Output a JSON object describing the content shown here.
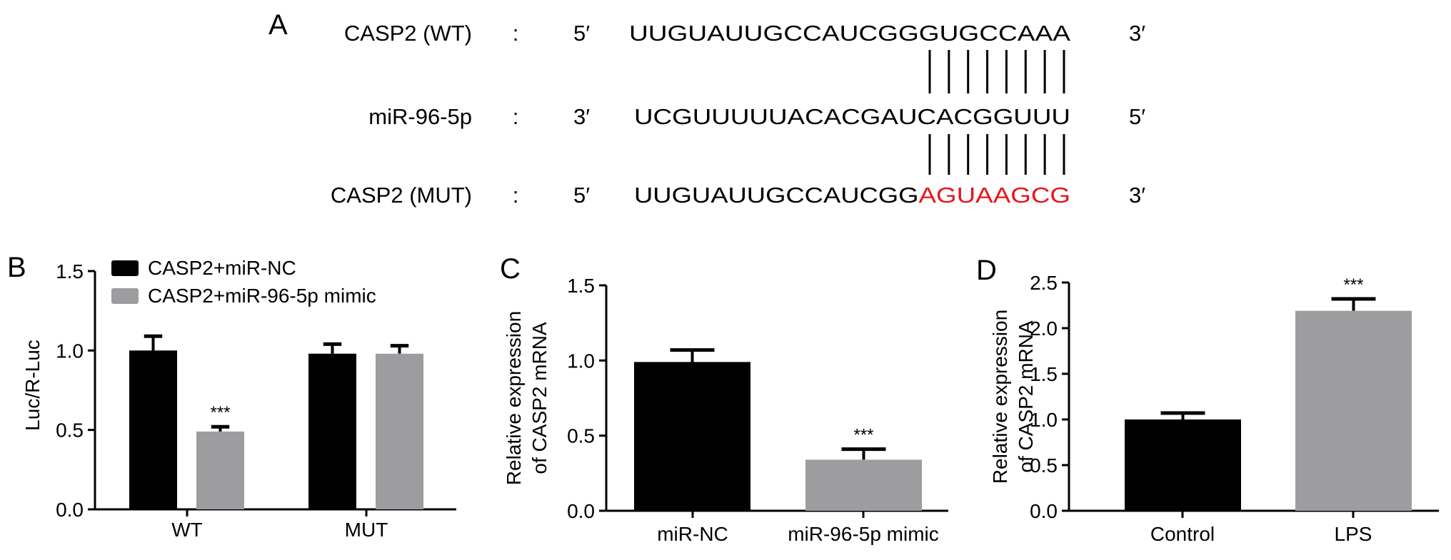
{
  "colors": {
    "black_bar": "#000000",
    "gray_bar": "#9d9d9f",
    "mutation": "#e8141b"
  },
  "panel_a": {
    "label": "A",
    "rows": [
      {
        "name": "CASP2 (WT)",
        "colon": ":",
        "left_end": "5′",
        "sequence": "UUGUAUUGCCAUCGGGUGCCAAA",
        "mutated": "",
        "right_end": "3′"
      },
      {
        "name": "miR-96-5p",
        "colon": ":",
        "left_end": "3′",
        "sequence": "UCGUUUUUACACGAUCACGGUUU",
        "mutated": "",
        "right_end": "5′"
      },
      {
        "name": "CASP2 (MUT)",
        "colon": ":",
        "left_end": "5′",
        "sequence": "UUGUAUUGCCAUCGG",
        "mutated": "AGUAAGCG",
        "right_end": "3′"
      }
    ],
    "pairing_lines_per_gap": 8
  },
  "chart_data": [
    {
      "panel": "B",
      "type": "bar",
      "ylabel": "Luc/R-Luc",
      "ylim": [
        0,
        1.5
      ],
      "yticks": [
        "0.0",
        "0.5",
        "1.0",
        "1.5"
      ],
      "categories": [
        "WT",
        "MUT"
      ],
      "legend": "top-left",
      "series": [
        {
          "name": "CASP2+miR-NC",
          "color": "#000000",
          "values": [
            1.0,
            0.98
          ],
          "errors": [
            0.09,
            0.06
          ],
          "annotations": [
            "",
            ""
          ]
        },
        {
          "name": "CASP2+miR-96-5p mimic",
          "color": "#9d9d9f",
          "values": [
            0.49,
            0.98
          ],
          "errors": [
            0.03,
            0.05
          ],
          "annotations": [
            "***",
            ""
          ]
        }
      ]
    },
    {
      "panel": "C",
      "type": "bar",
      "ylabel": [
        "Relative expression",
        "of CASP2 mRNA"
      ],
      "ylim": [
        0,
        1.5
      ],
      "yticks": [
        "0.0",
        "0.5",
        "1.0",
        "1.5"
      ],
      "categories": [
        "miR-NC",
        "miR-96-5p mimic"
      ],
      "values": [
        0.99,
        0.34
      ],
      "errors": [
        0.08,
        0.07
      ],
      "colors": [
        "#000000",
        "#9d9d9f"
      ],
      "annotations": [
        "",
        "***"
      ]
    },
    {
      "panel": "D",
      "type": "bar",
      "ylabel": [
        "Relative expression",
        "of CASP2 mRNA"
      ],
      "ylim": [
        0,
        2.5
      ],
      "yticks": [
        "0.0",
        "0.5",
        "1.0",
        "1.5",
        "2.0",
        "2.5"
      ],
      "categories": [
        "Control",
        "LPS"
      ],
      "values": [
        1.0,
        2.19
      ],
      "errors": [
        0.07,
        0.13
      ],
      "colors": [
        "#000000",
        "#9d9d9f"
      ],
      "annotations": [
        "",
        "***"
      ]
    }
  ]
}
